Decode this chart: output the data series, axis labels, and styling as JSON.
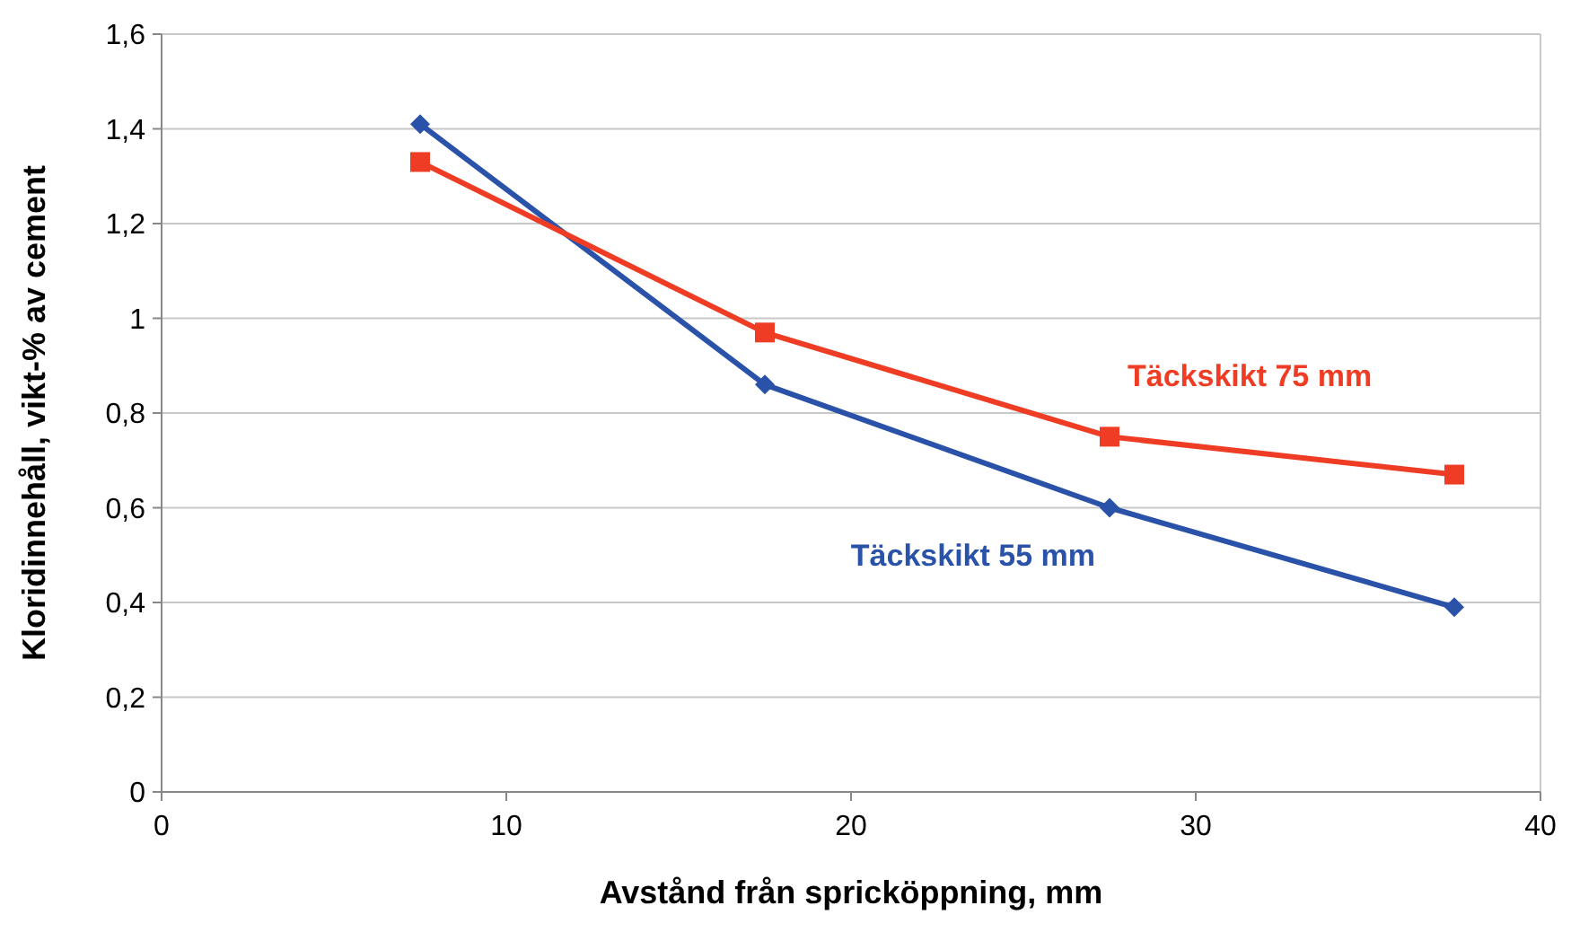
{
  "chart_data": {
    "type": "line",
    "xlabel": "Avstånd från spricköppning, mm",
    "ylabel": "Kloridinnehåll, vikt-% av cement",
    "x": [
      7.5,
      17.5,
      27.5,
      37.5
    ],
    "series": [
      {
        "name": "Täckskikt 55 mm",
        "color": "#2a52a8",
        "marker": "diamond",
        "values": [
          1.41,
          0.86,
          0.6,
          0.39
        ]
      },
      {
        "name": "Täckskikt 75 mm",
        "color": "#ee3d24",
        "marker": "square",
        "values": [
          1.33,
          0.97,
          0.75,
          0.67
        ]
      }
    ],
    "xlim": [
      0,
      40
    ],
    "xticks": [
      0,
      10,
      20,
      30,
      40
    ],
    "ylim": [
      0,
      1.6
    ],
    "yticks": [
      0,
      {
        "value": 0.2,
        "label": "0,2"
      },
      {
        "value": 0.4,
        "label": "0,4"
      },
      {
        "value": 0.6,
        "label": "0,6"
      },
      {
        "value": 0.8,
        "label": "0,8"
      },
      1,
      {
        "value": 1.2,
        "label": "1,2"
      },
      {
        "value": 1.4,
        "label": "1,4"
      },
      {
        "value": 1.6,
        "label": "1,6"
      }
    ],
    "grid": "y",
    "line_style": "solid"
  }
}
